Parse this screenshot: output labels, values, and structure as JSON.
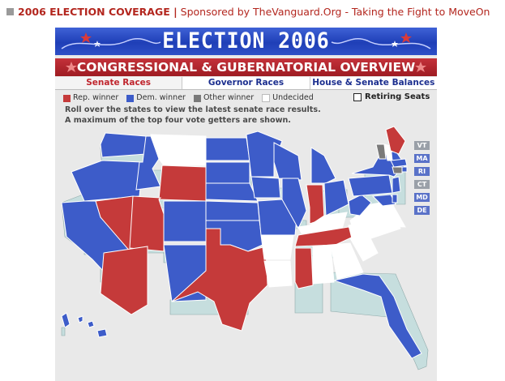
{
  "header": {
    "title": "2006 ELECTION COVERAGE |",
    "sponsor": "Sponsored by TheVanguard.Org - Taking the Fight to MoveOn"
  },
  "banner": {
    "title": "ELECTION 2006",
    "subtitle": "CONGRESSIONAL & GUBERNATORIAL OVERVIEW"
  },
  "tabs": [
    {
      "label": "Senate Races",
      "active": true
    },
    {
      "label": "Governor Races",
      "active": false
    },
    {
      "label": "House & Senate Balances",
      "active": false
    }
  ],
  "legend": [
    {
      "label": "Rep. winner",
      "color": "#c53a3a"
    },
    {
      "label": "Dem. winner",
      "color": "#3d5cc9"
    },
    {
      "label": "Other winner",
      "color": "#7a7a7a"
    },
    {
      "label": "Undecided",
      "color": "#ffffff"
    }
  ],
  "retiring_seats": {
    "label": "Retiring Seats",
    "checked": false
  },
  "instructions": [
    "Roll over the states to view the latest senate race results.",
    "A maximum of the top four vote getters are shown."
  ],
  "small_states": [
    {
      "abbr": "VT",
      "status": "other",
      "color": "#9aa0a8"
    },
    {
      "abbr": "MA",
      "status": "dem",
      "color": "#5a72c8"
    },
    {
      "abbr": "RI",
      "status": "dem",
      "color": "#5a72c8"
    },
    {
      "abbr": "CT",
      "status": "other",
      "color": "#9aa0a8"
    },
    {
      "abbr": "MD",
      "status": "dem",
      "color": "#5a72c8"
    },
    {
      "abbr": "DE",
      "status": "dem",
      "color": "#5a72c8"
    }
  ],
  "colors": {
    "rep": "#c53a3a",
    "dem": "#3d5cc9",
    "other": "#7a7a7a",
    "undecided": "#ffffff",
    "side": "#c6dede"
  }
}
